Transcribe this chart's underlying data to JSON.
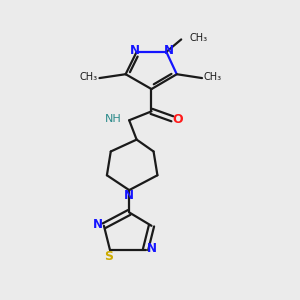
{
  "bg_color": "#ebebeb",
  "bond_color": "#1a1a1a",
  "N_color": "#1414ff",
  "O_color": "#ff1a1a",
  "S_color": "#ccaa00",
  "NH_color": "#2a8a8a",
  "line_width": 1.6,
  "fig_size": [
    3.0,
    3.0
  ],
  "dpi": 100,
  "xlim": [
    0,
    10
  ],
  "ylim": [
    0,
    10
  ]
}
